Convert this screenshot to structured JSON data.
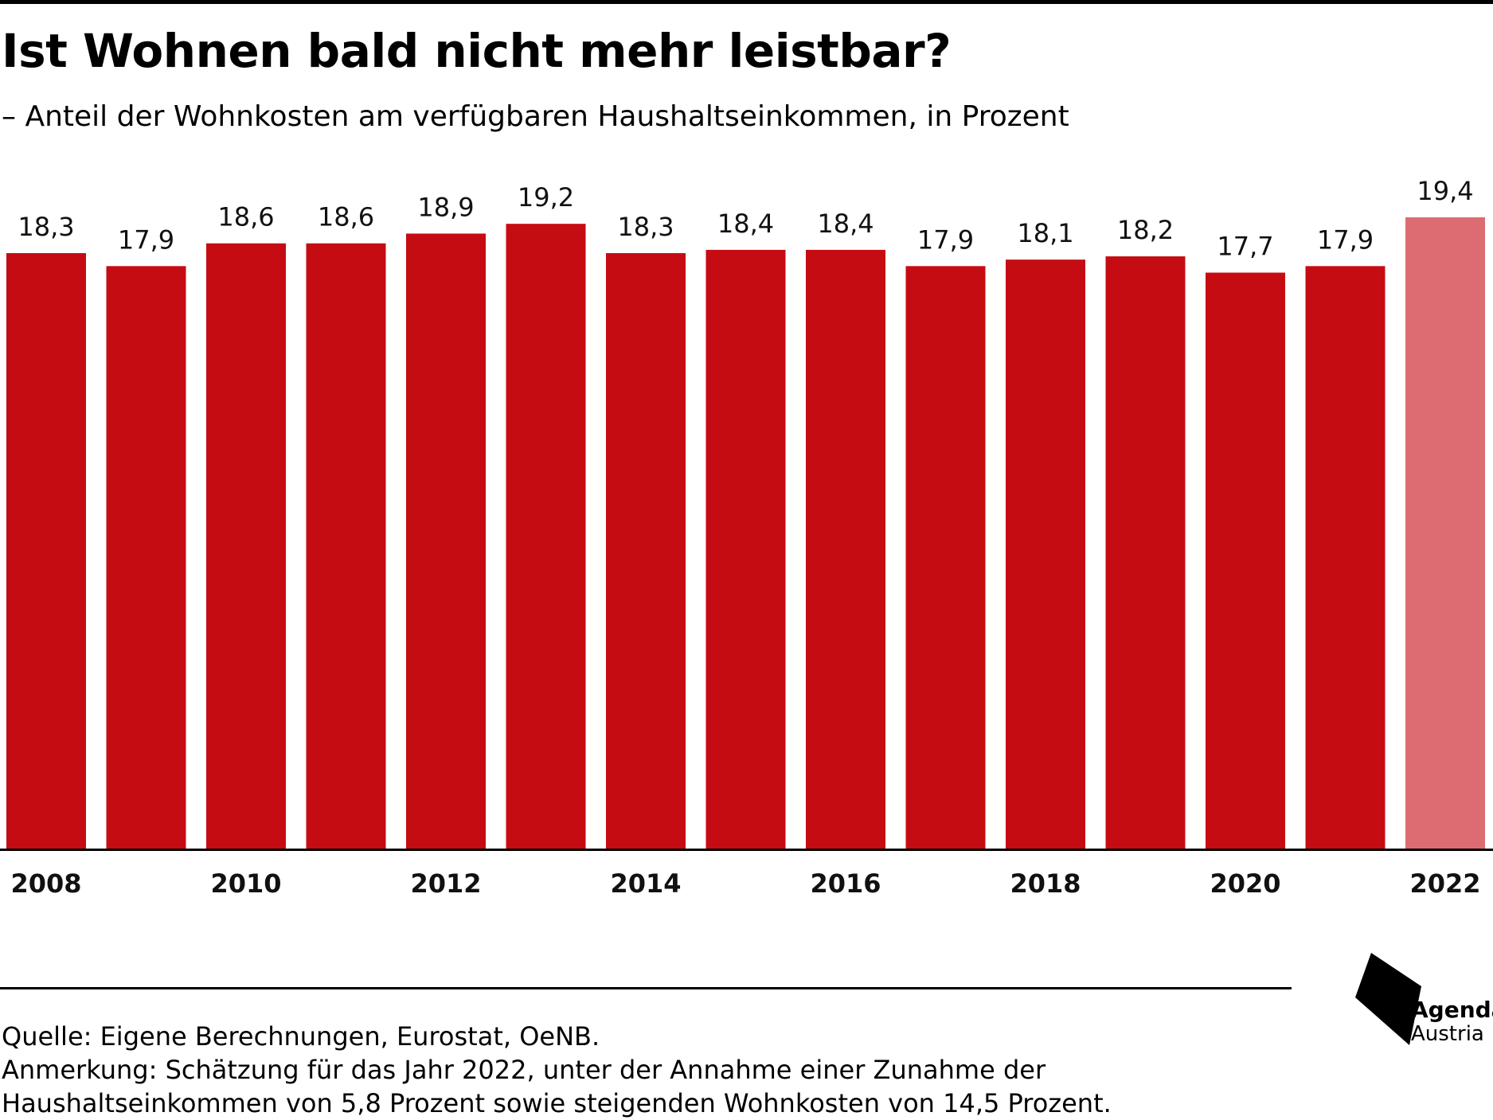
{
  "header": {
    "title": "Ist Wohnen bald nicht mehr leistbar?",
    "subtitle": "– Anteil der Wohnkosten am verfügbaren Haushaltseinkommen, in Prozent"
  },
  "chart_data": {
    "type": "bar",
    "categories": [
      "2008",
      "2009",
      "2010",
      "2011",
      "2012",
      "2013",
      "2014",
      "2015",
      "2016",
      "2017",
      "2018",
      "2019",
      "2020",
      "2021",
      "2022"
    ],
    "values": [
      18.3,
      17.9,
      18.6,
      18.6,
      18.9,
      19.2,
      18.3,
      18.4,
      18.4,
      17.9,
      18.1,
      18.2,
      17.7,
      17.9,
      19.4
    ],
    "value_labels": [
      "18,3",
      "17,9",
      "18,6",
      "18,6",
      "18,9",
      "19,2",
      "18,3",
      "18,4",
      "18,4",
      "17,9",
      "18,1",
      "18,2",
      "17,7",
      "17,9",
      "19,4"
    ],
    "tick_labels": [
      "2008",
      "",
      "2010",
      "",
      "2012",
      "",
      "2014",
      "",
      "2016",
      "",
      "2018",
      "",
      "2020",
      "",
      "2022"
    ],
    "estimate_category": "2022",
    "ylim": [
      0,
      19.4
    ],
    "colors": {
      "bar": "#c60c13",
      "estimate_bar": "#dd6c72",
      "axis": "#000000"
    },
    "grid": false,
    "legend": "none"
  },
  "footer": {
    "source": "Quelle: Eigene Berechnungen, Eurostat, OeNB.",
    "note_line1": "Anmerkung: Schätzung für das Jahr 2022, unter der Annahme einer Zunahme der",
    "note_line2": "Haushaltseinkommen von 5,8 Prozent sowie steigenden Wohnkosten von 14,5 Prozent."
  },
  "logo": {
    "word1": "Agenda",
    "word2": "Austria",
    "icon": "agenda-austria-logo-icon"
  }
}
